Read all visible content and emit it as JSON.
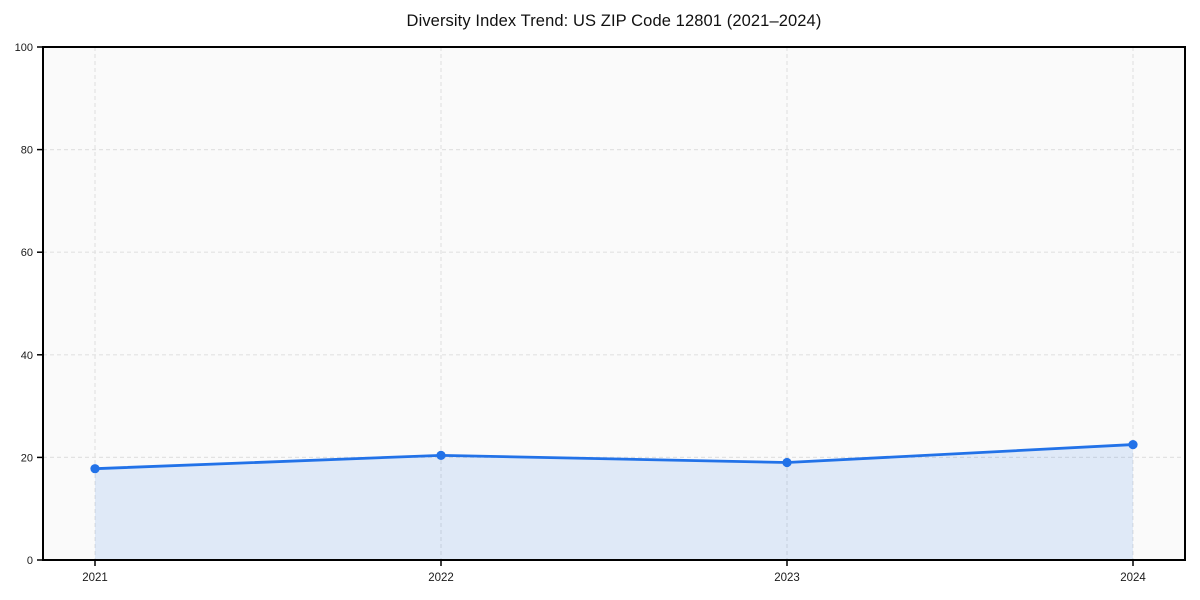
{
  "chart": {
    "title": "Diversity Index Trend: US ZIP Code 12801 (2021–2024)"
  },
  "chart_data": {
    "type": "line",
    "title": "Diversity Index Trend: US ZIP Code 12801 (2021–2024)",
    "categories": [
      "2021",
      "2022",
      "2023",
      "2024"
    ],
    "series": [
      {
        "name": "Diversity Index",
        "values": [
          17.8,
          20.4,
          19.0,
          22.5
        ]
      }
    ],
    "xlabel": "",
    "ylabel": "",
    "ylim": [
      0,
      100
    ],
    "yticks": [
      0,
      20,
      40,
      60,
      80,
      100
    ],
    "grid": true,
    "grid_style": "dashed",
    "legend_position": "none",
    "area_fill": true,
    "marker": "circle",
    "colors": {
      "line": "#2272e8",
      "fill_opacity": 0.12,
      "grid": "#e2e2e2",
      "plot_background": "#fafafa",
      "spine": "#000000",
      "tick_text": "#1a1a1a",
      "title_text": "#111111"
    }
  }
}
